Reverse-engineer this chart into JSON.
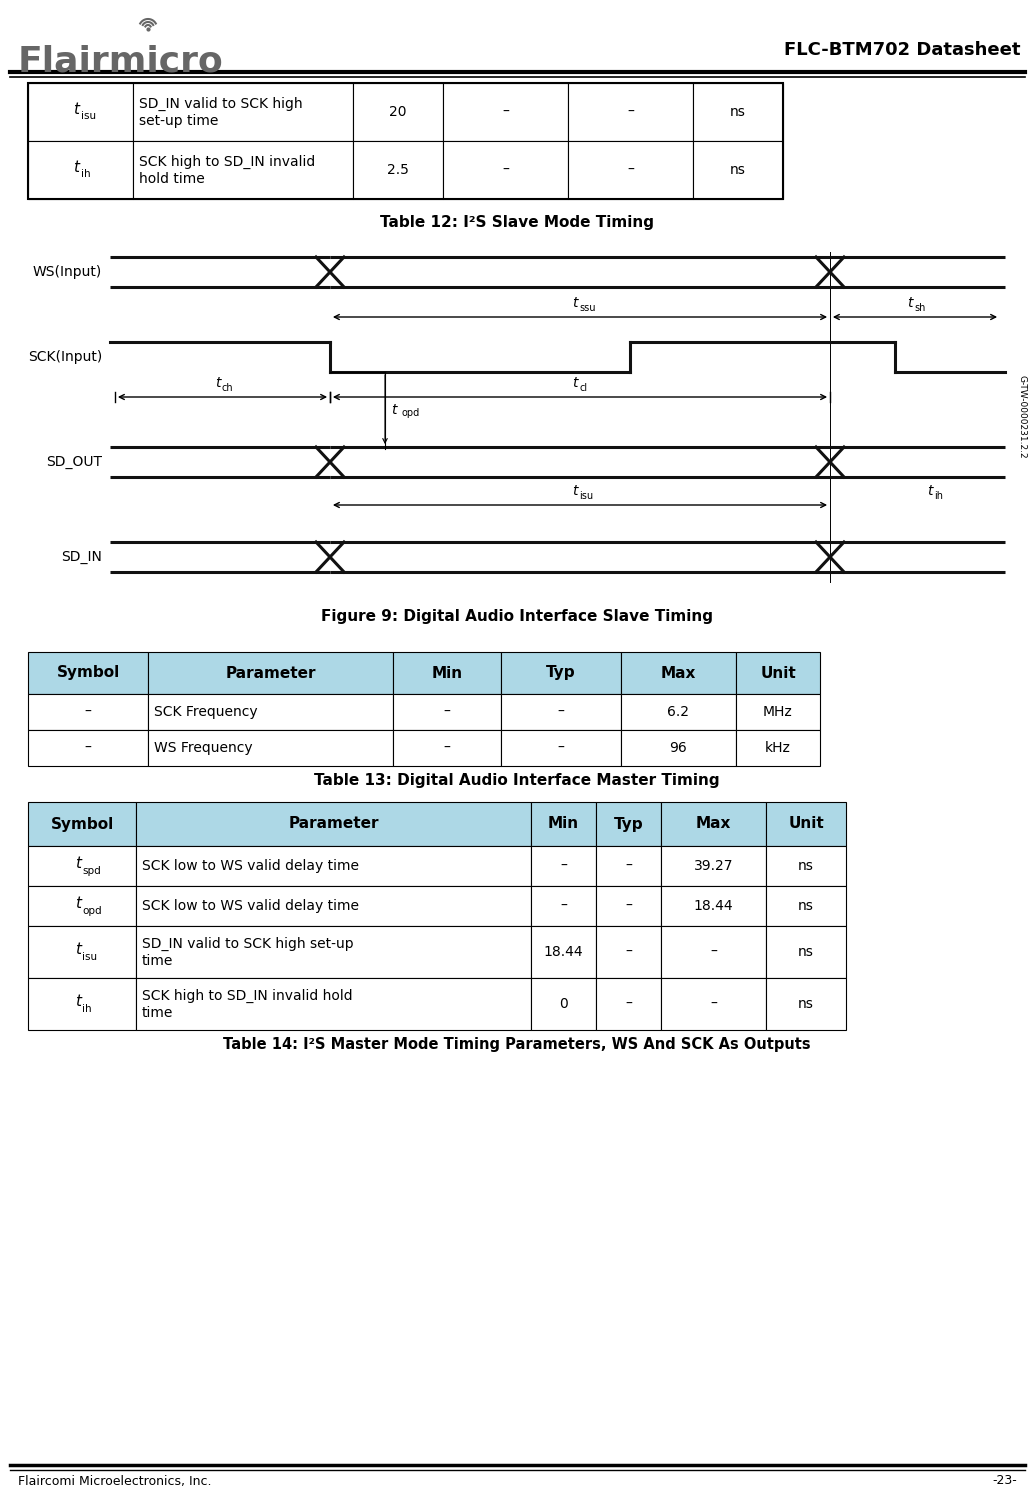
{
  "title_right": "FLC-BTM702 Datasheet",
  "header_color": "#add8e6",
  "table1_caption": "Table 12: I²S Slave Mode Timing",
  "table1_rows": [
    [
      "tisu",
      "SD_IN valid to SCK high\nset-up time",
      "20",
      "–",
      "–",
      "ns"
    ],
    [
      "tih",
      "SCK high to SD_IN invalid\nhold time",
      "2.5",
      "–",
      "–",
      "ns"
    ]
  ],
  "figure_caption": "Figure 9: Digital Audio Interface Slave Timing",
  "table2_caption": "Table 13: Digital Audio Interface Master Timing",
  "table2_headers": [
    "Symbol",
    "Parameter",
    "Min",
    "Typ",
    "Max",
    "Unit"
  ],
  "table2_rows": [
    [
      "–",
      "SCK Frequency",
      "–",
      "–",
      "6.2",
      "MHz"
    ],
    [
      "–",
      "WS Frequency",
      "–",
      "–",
      "96",
      "kHz"
    ]
  ],
  "table3_caption": "Table 14: I²S Master Mode Timing Parameters, WS And SCK As Outputs",
  "table3_headers": [
    "Symbol",
    "Parameter",
    "Min",
    "Typ",
    "Max",
    "Unit"
  ],
  "table3_rows": [
    [
      "tspd",
      "SCK low to WS valid delay time",
      "–",
      "–",
      "39.27",
      "ns"
    ],
    [
      "topd",
      "SCK low to WS valid delay time",
      "–",
      "–",
      "18.44",
      "ns"
    ],
    [
      "tisu",
      "SD_IN valid to SCK high set-up\ntime",
      "18.44",
      "–",
      "–",
      "ns"
    ],
    [
      "tih",
      "SCK high to SD_IN invalid hold\ntime",
      "0",
      "–",
      "–",
      "ns"
    ]
  ],
  "footer_left": "Flaircomi Microelectronics, Inc.",
  "footer_right": "-23-",
  "bg_color": "#ffffff",
  "logo_text": "Flairmicro",
  "logo_color": "#666666"
}
